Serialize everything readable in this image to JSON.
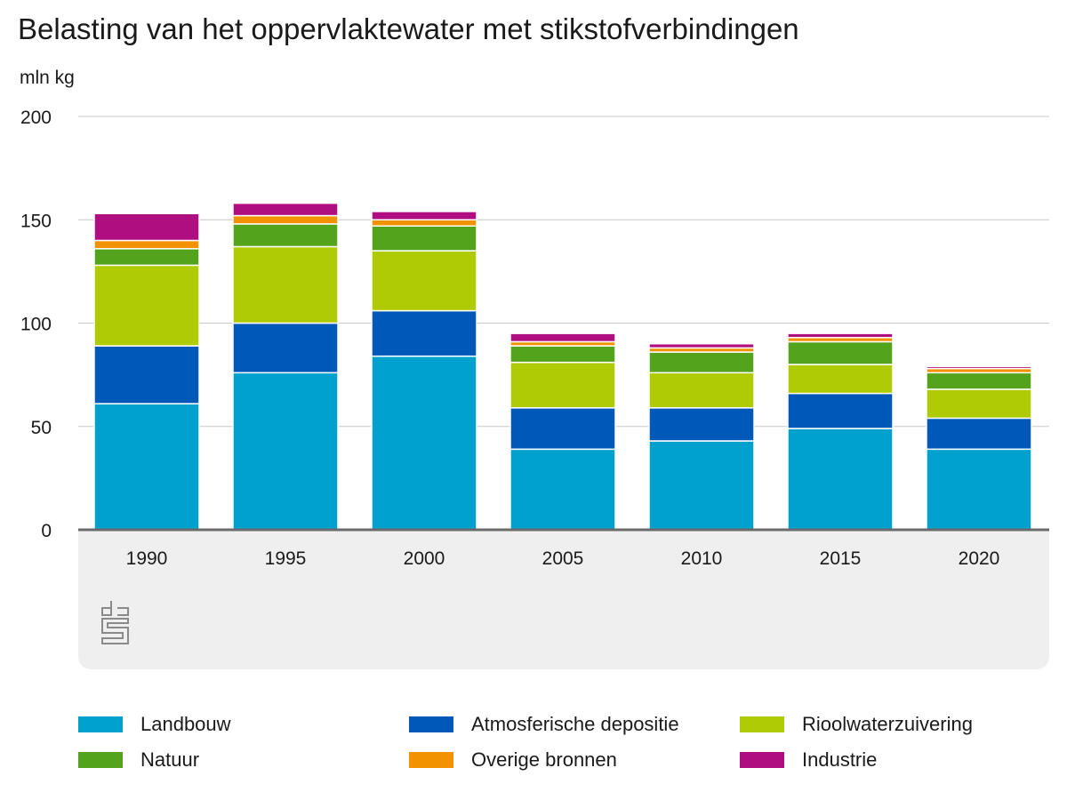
{
  "chart_data": {
    "type": "bar",
    "stacked": true,
    "title": "Belasting van het oppervlaktewater met stikstofverbindingen",
    "ylabel": "mln kg",
    "xlabel": "",
    "ylim": [
      0,
      200
    ],
    "yticks": [
      0,
      50,
      100,
      150,
      200
    ],
    "grid": true,
    "legend_position": "bottom",
    "categories": [
      "1990",
      "1995",
      "2000",
      "2005",
      "2010",
      "2015",
      "2020"
    ],
    "series": [
      {
        "name": "Landbouw",
        "color": "#00a1cd",
        "values": [
          61,
          76,
          84,
          39,
          43,
          49,
          39
        ]
      },
      {
        "name": "Atmosferische depositie",
        "color": "#0058b8",
        "values": [
          28,
          24,
          22,
          20,
          16,
          17,
          15
        ]
      },
      {
        "name": "Rioolwaterzuivering",
        "color": "#afcb05",
        "values": [
          39,
          37,
          29,
          22,
          17,
          14,
          14
        ]
      },
      {
        "name": "Natuur",
        "color": "#53a31d",
        "values": [
          8,
          11,
          12,
          8,
          10,
          11,
          8
        ]
      },
      {
        "name": "Overige bronnen",
        "color": "#f39200",
        "values": [
          4,
          4,
          3,
          2,
          2,
          2,
          2
        ]
      },
      {
        "name": "Industrie",
        "color": "#af0e80",
        "values": [
          13,
          6,
          4,
          4,
          2,
          2,
          1
        ]
      }
    ],
    "logo_text": "cbs"
  }
}
